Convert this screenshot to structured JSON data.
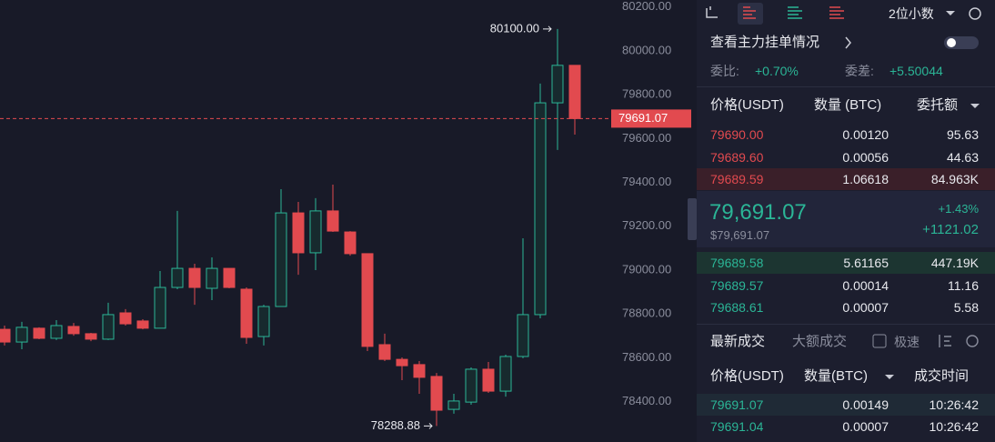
{
  "chart_data": {
    "type": "candlestick",
    "open": [
      78730,
      78672,
      78735,
      78689,
      78743,
      78710,
      78685,
      78805,
      78768,
      78735,
      78921,
      79008,
      78917,
      79008,
      78913,
      78697,
      78834,
      79261,
      79079,
      79270,
      79174,
      79075,
      78660,
      78593,
      78569,
      78515,
      78365,
      78398,
      78548,
      78448,
      78606,
      78797,
      79763,
      79934
    ],
    "high": [
      78747,
      78764,
      78739,
      78772,
      78759,
      78714,
      78851,
      78822,
      78776,
      78996,
      79270,
      79029,
      79058,
      79008,
      78921,
      78842,
      79369,
      79311,
      79328,
      79390,
      79178,
      79075,
      78710,
      78602,
      78585,
      78531,
      78436,
      78556,
      78581,
      78614,
      79145,
      79851,
      80100,
      79934
    ],
    "low": [
      78656,
      78639,
      78685,
      78681,
      78701,
      78676,
      78681,
      78747,
      78730,
      78735,
      78913,
      78842,
      78863,
      78917,
      78664,
      78656,
      78834,
      78979,
      79000,
      79174,
      79066,
      78631,
      78585,
      78498,
      78436,
      78288.88,
      78345,
      78386,
      78440,
      78423,
      78598,
      78780,
      79548,
      79618
    ],
    "close": [
      78672,
      78739,
      78689,
      78747,
      78710,
      78685,
      78797,
      78755,
      78735,
      78921,
      79008,
      78921,
      79008,
      78921,
      78693,
      78834,
      79261,
      79079,
      79270,
      79178,
      79075,
      78652,
      78593,
      78564,
      78511,
      78361,
      78403,
      78548,
      78448,
      78606,
      78797,
      79763,
      79934,
      79691.07
    ],
    "up_color": "#2bb596",
    "down_color": "#e24a4f",
    "ylim": [
      78216,
      80232
    ],
    "yticks": [
      {
        "value": 80200,
        "label": "80200.00"
      },
      {
        "value": 80000,
        "label": "80000.00"
      },
      {
        "value": 79800,
        "label": "79800.00"
      },
      {
        "value": 79600,
        "label": "79600.00"
      },
      {
        "value": 79400,
        "label": "79400.00"
      },
      {
        "value": 79200,
        "label": "79200.00"
      },
      {
        "value": 79000,
        "label": "79000.00"
      },
      {
        "value": 78800,
        "label": "78800.00"
      },
      {
        "value": 78600,
        "label": "78600.00"
      },
      {
        "value": 78400,
        "label": "78400.00"
      }
    ],
    "high_label": "80100.00",
    "low_label": "78288.88",
    "last_label": "79691.07",
    "grid": false
  },
  "toolbar": {
    "decimals": "2位小数"
  },
  "order_book": {
    "whale_link": "查看主力挂单情况",
    "ratio_label": "委比:",
    "ratio": "+0.70%",
    "diff_label": "委差:",
    "diff": "+5.50044",
    "headers": [
      "价格(USDT)",
      "数量 (BTC)",
      "委托额"
    ],
    "asks": [
      [
        "79690.00",
        "0.00120",
        "95.63"
      ],
      [
        "79689.60",
        "0.00056",
        "44.63"
      ],
      [
        "79689.59",
        "1.06618",
        "84.963K"
      ]
    ],
    "last_price": "79,691.07",
    "last_price_usd": "$79,691.07",
    "change_pct": "+1.43%",
    "change": "+1121.02",
    "bids": [
      [
        "79689.58",
        "5.61165",
        "447.19K"
      ],
      [
        "79689.57",
        "0.00014",
        "11.16"
      ],
      [
        "79688.61",
        "0.00007",
        "5.58"
      ]
    ]
  },
  "trades": {
    "tabs": [
      "最新成交",
      "大额成交"
    ],
    "fast_label": "极速",
    "headers": [
      "价格(USDT)",
      "数量(BTC)",
      "成交时间"
    ],
    "rows": [
      [
        "79691.07",
        "0.00149",
        "10:26:42"
      ],
      [
        "79691.04",
        "0.00007",
        "10:26:42"
      ]
    ]
  }
}
